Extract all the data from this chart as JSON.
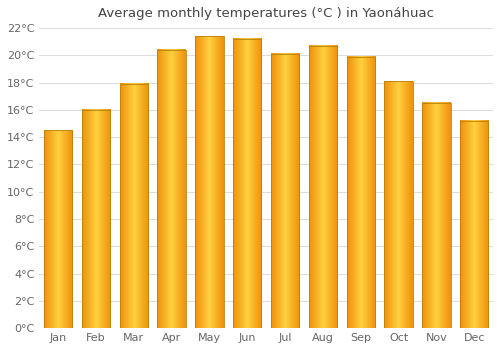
{
  "months": [
    "Jan",
    "Feb",
    "Mar",
    "Apr",
    "May",
    "Jun",
    "Jul",
    "Aug",
    "Sep",
    "Oct",
    "Nov",
    "Dec"
  ],
  "values": [
    14.5,
    16.0,
    17.9,
    20.4,
    21.4,
    21.2,
    20.1,
    20.7,
    19.9,
    18.1,
    16.5,
    15.2
  ],
  "bar_color_center": "#FFD040",
  "bar_color_edge": "#F0900A",
  "bar_border_color": "#B8820A",
  "title": "Average monthly temperatures (°C ) in Yaonáhuac",
  "ylim": [
    0,
    22
  ],
  "ytick_step": 2,
  "background_color": "#ffffff",
  "grid_color": "#dddddd",
  "title_fontsize": 9.5,
  "tick_fontsize": 8,
  "title_color": "#444444",
  "tick_color": "#666666"
}
